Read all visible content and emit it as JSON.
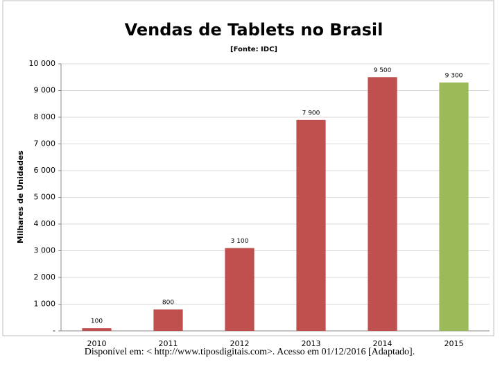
{
  "chart_data": {
    "type": "bar",
    "title": "Vendas de Tablets no Brasil",
    "subtitle": "[Fonte: IDC]",
    "y_label": "Milhares de Unidades",
    "categories": [
      "2010",
      "2011",
      "2012",
      "2013",
      "2014",
      "2015"
    ],
    "values": [
      100,
      800,
      3100,
      7900,
      9500,
      9300
    ],
    "value_labels": [
      "100",
      "800",
      "3 100",
      "7 900",
      "9 500",
      "9 300"
    ],
    "colors": [
      "#c0504d",
      "#c0504d",
      "#c0504d",
      "#c0504d",
      "#c0504d",
      "#9bbb59"
    ],
    "ylim": [
      0,
      10000
    ],
    "yticks": [
      {
        "value": 0,
        "label": "-"
      },
      {
        "value": 1000,
        "label": "1 000"
      },
      {
        "value": 2000,
        "label": "2 000"
      },
      {
        "value": 3000,
        "label": "3 000"
      },
      {
        "value": 4000,
        "label": "4 000"
      },
      {
        "value": 5000,
        "label": "5 000"
      },
      {
        "value": 6000,
        "label": "6 000"
      },
      {
        "value": 7000,
        "label": "7 000"
      },
      {
        "value": 8000,
        "label": "8 000"
      },
      {
        "value": 9000,
        "label": "9 000"
      },
      {
        "value": 10000,
        "label": "10 000"
      }
    ],
    "grid": true
  },
  "caption": "Disponível em: < http://www.tiposdigitais.com>. Acesso em 01/12/2016 [Adaptado]."
}
